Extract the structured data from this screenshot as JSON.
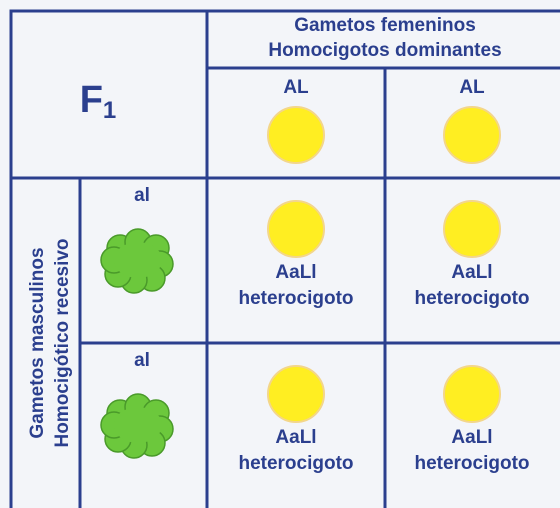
{
  "corner": {
    "label": "F",
    "subscript": "1"
  },
  "column_header": {
    "lines": [
      "Gametos femeninos",
      "Homocigotos dominantes"
    ]
  },
  "row_header": {
    "lines": [
      "Gametos masculinos",
      "Homocigótico recesivo"
    ]
  },
  "columns": [
    {
      "label": "AL"
    },
    {
      "label": "AL"
    }
  ],
  "rows": [
    {
      "label": "al",
      "cells": [
        {
          "genotype": "AaLl",
          "type": "heterocigoto"
        },
        {
          "genotype": "AaLl",
          "type": "heterocigoto"
        }
      ]
    },
    {
      "label": "al",
      "cells": [
        {
          "genotype": "AaLl",
          "type": "heterocigoto"
        },
        {
          "genotype": "AaLl",
          "type": "heterocigoto"
        }
      ]
    }
  ]
}
